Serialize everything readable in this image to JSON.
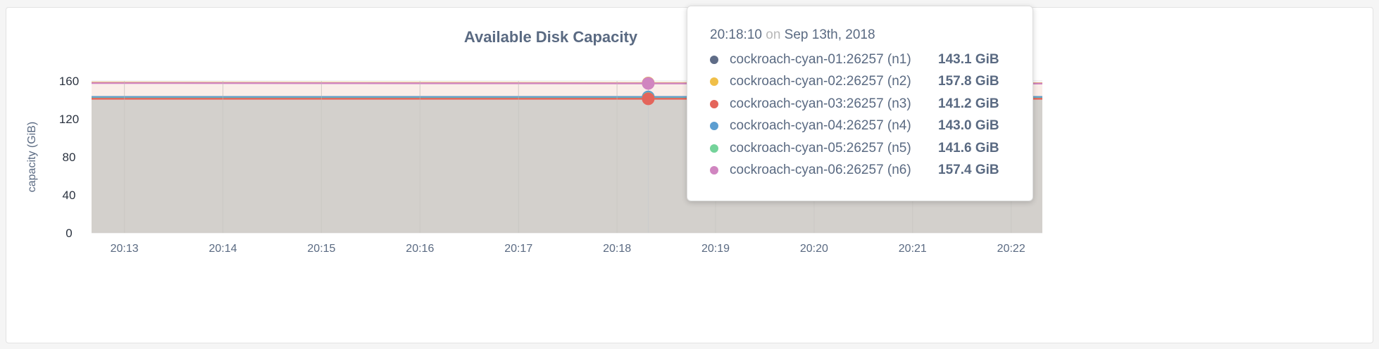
{
  "chart_data": {
    "type": "area",
    "title": "Available Disk Capacity",
    "ylabel": "capacity (GiB)",
    "ylim": [
      0,
      160
    ],
    "yticks": [
      0,
      40,
      80,
      120,
      160
    ],
    "xticks": [
      "20:13",
      "20:14",
      "20:15",
      "20:16",
      "20:17",
      "20:18",
      "20:19",
      "20:20",
      "20:21",
      "20:22"
    ],
    "xlim": [
      "20:12:40",
      "20:22:19"
    ],
    "grid": true,
    "x": [
      "20:12:40",
      "20:18:10",
      "20:22:19"
    ],
    "series": [
      {
        "name": "cockroach-cyan-01:26257 (n1)",
        "color": "#5f6c87",
        "values": [
          143.1,
          143.1,
          143.1
        ]
      },
      {
        "name": "cockroach-cyan-02:26257 (n2)",
        "color": "#f0bf48",
        "values": [
          158.2,
          157.8,
          157.6
        ]
      },
      {
        "name": "cockroach-cyan-03:26257 (n3)",
        "color": "#e4655b",
        "values": [
          141.2,
          141.2,
          141.2
        ]
      },
      {
        "name": "cockroach-cyan-04:26257 (n4)",
        "color": "#5c9ed1",
        "values": [
          143.0,
          143.0,
          143.0
        ]
      },
      {
        "name": "cockroach-cyan-05:26257 (n5)",
        "color": "#74d39a",
        "values": [
          141.6,
          141.6,
          141.6
        ]
      },
      {
        "name": "cockroach-cyan-06:26257 (n6)",
        "color": "#d085c0",
        "values": [
          157.8,
          157.4,
          157.2
        ]
      }
    ],
    "hover": {
      "time": "20:18:10",
      "on": "on",
      "date": "Sep 13th, 2018",
      "index": 1
    },
    "tooltip_values": [
      "143.1 GiB",
      "157.8 GiB",
      "141.2 GiB",
      "143.0 GiB",
      "141.6 GiB",
      "157.4 GiB"
    ]
  }
}
